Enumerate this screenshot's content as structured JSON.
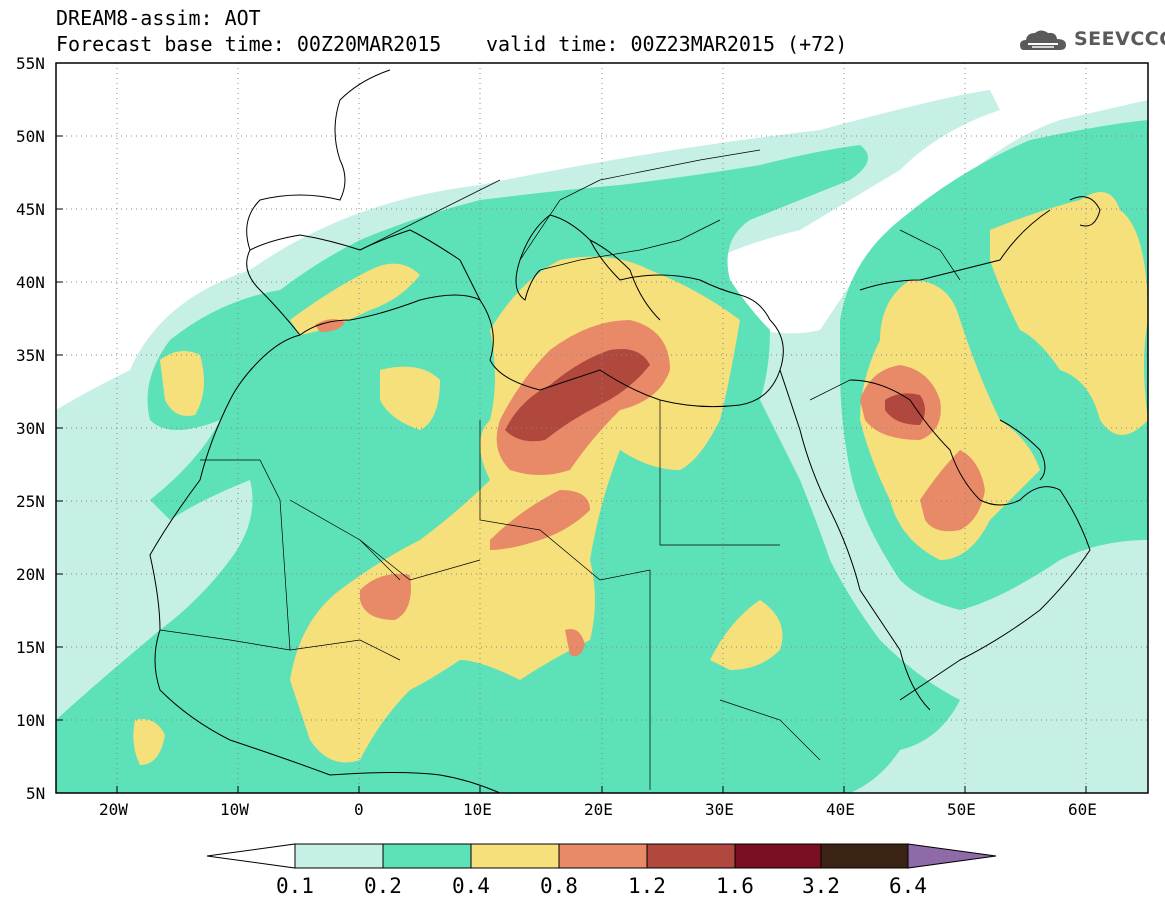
{
  "header": {
    "model_title": "DREAM8-assim: AOT",
    "base_time": "Forecast base time: 00Z20MAR2015",
    "valid_time": "valid time: 00Z23MAR2015 (+72)"
  },
  "logo": {
    "text": "SEEVCCC",
    "icon": "cloud-logo-icon"
  },
  "map": {
    "lat_labels": [
      "55N",
      "50N",
      "45N",
      "40N",
      "35N",
      "30N",
      "25N",
      "20N",
      "15N",
      "10N",
      "5N"
    ],
    "lon_labels": [
      "20W",
      "10W",
      "0",
      "10E",
      "20E",
      "30E",
      "40E",
      "50E",
      "60E"
    ],
    "lat_range": [
      5,
      55
    ],
    "lon_range": [
      -25,
      65
    ],
    "grid": "dotted"
  },
  "colorbar": {
    "levels": [
      "0.1",
      "0.2",
      "0.4",
      "0.8",
      "1.2",
      "1.6",
      "3.2",
      "6.4"
    ],
    "colors": [
      "#ffffff",
      "#c6f0e6",
      "#5de1b9",
      "#f5e07b",
      "#e88a67",
      "#b0483e",
      "#7a0e22",
      "#3b2314",
      "#8e6aa8"
    ]
  },
  "colors": {
    "very_low": "#c6f0e6",
    "low": "#5de1b9",
    "medium": "#f5e07b",
    "high": "#e88a67",
    "very_high": "#b0483e"
  }
}
